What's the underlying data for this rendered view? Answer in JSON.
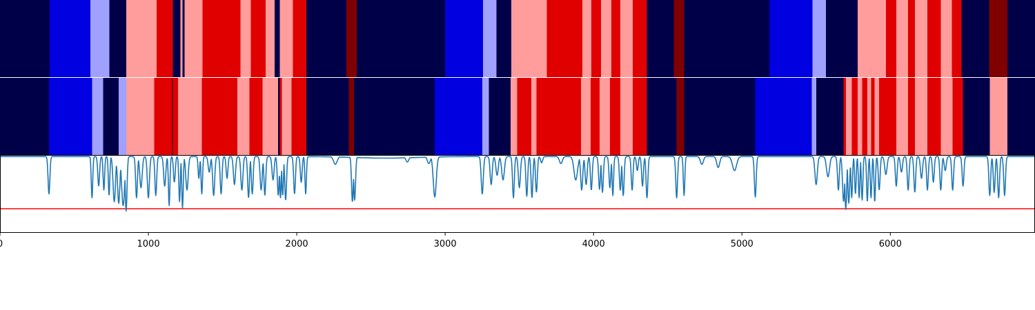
{
  "chart_data": {
    "type": "segmentation-strips-with-line",
    "xlim": [
      0,
      6975
    ],
    "x_ticks": [
      0,
      1000,
      2000,
      3000,
      4000,
      5000,
      6000
    ],
    "x_tick_labels": [
      "0",
      "1000",
      "2000",
      "3000",
      "4000",
      "5000",
      "6000"
    ],
    "colors": {
      "navy": "#000048",
      "blue": "#0000e0",
      "lightblue": "#a0a0ff",
      "pink": "#ff9c9c",
      "red": "#e00000",
      "darkred": "#800000",
      "line": "#1f77b4",
      "threshold": "#ff0000"
    },
    "strips": [
      {
        "name": "top",
        "segments": [
          [
            "navy",
            0,
            335
          ],
          [
            "blue",
            335,
            610
          ],
          [
            "lightblue",
            610,
            738
          ],
          [
            "navy",
            738,
            850
          ],
          [
            "pink",
            850,
            1055
          ],
          [
            "red",
            1055,
            1165
          ],
          [
            "navy",
            1165,
            1215
          ],
          [
            "pink",
            1215,
            1230
          ],
          [
            "navy",
            1230,
            1245
          ],
          [
            "pink",
            1245,
            1365
          ],
          [
            "red",
            1365,
            1620
          ],
          [
            "pink",
            1620,
            1690
          ],
          [
            "red",
            1690,
            1790
          ],
          [
            "pink",
            1790,
            1850
          ],
          [
            "navy",
            1850,
            1885
          ],
          [
            "pink",
            1885,
            1975
          ],
          [
            "red",
            1975,
            2065
          ],
          [
            "navy",
            2065,
            2335
          ],
          [
            "darkred",
            2335,
            2405
          ],
          [
            "navy",
            2405,
            3000
          ],
          [
            "blue",
            3000,
            3255
          ],
          [
            "lightblue",
            3255,
            3345
          ],
          [
            "navy",
            3345,
            3445
          ],
          [
            "pink",
            3445,
            3685
          ],
          [
            "red",
            3685,
            3925
          ],
          [
            "pink",
            3925,
            3985
          ],
          [
            "red",
            3985,
            4050
          ],
          [
            "pink",
            4050,
            4120
          ],
          [
            "red",
            4120,
            4180
          ],
          [
            "pink",
            4180,
            4265
          ],
          [
            "red",
            4265,
            4360
          ],
          [
            "navy",
            4360,
            4540
          ],
          [
            "darkred",
            4540,
            4610
          ],
          [
            "navy",
            4610,
            5185
          ],
          [
            "blue",
            5185,
            5475
          ],
          [
            "lightblue",
            5475,
            5565
          ],
          [
            "navy",
            5565,
            5780
          ],
          [
            "pink",
            5780,
            5970
          ],
          [
            "red",
            5970,
            6040
          ],
          [
            "pink",
            6040,
            6120
          ],
          [
            "red",
            6120,
            6165
          ],
          [
            "pink",
            6165,
            6250
          ],
          [
            "red",
            6250,
            6340
          ],
          [
            "pink",
            6340,
            6415
          ],
          [
            "red",
            6415,
            6480
          ],
          [
            "navy",
            6480,
            6665
          ],
          [
            "darkred",
            6665,
            6790
          ],
          [
            "navy",
            6790,
            6975
          ]
        ]
      },
      {
        "name": "middle",
        "segments": [
          [
            "navy",
            0,
            330
          ],
          [
            "blue",
            330,
            620
          ],
          [
            "lightblue",
            620,
            695
          ],
          [
            "navy",
            695,
            800
          ],
          [
            "lightblue",
            800,
            850
          ],
          [
            "pink",
            850,
            1040
          ],
          [
            "red",
            1040,
            1160
          ],
          [
            "navy",
            1160,
            1165
          ],
          [
            "red",
            1165,
            1200
          ],
          [
            "pink",
            1200,
            1360
          ],
          [
            "red",
            1360,
            1600
          ],
          [
            "pink",
            1600,
            1680
          ],
          [
            "red",
            1680,
            1770
          ],
          [
            "pink",
            1770,
            1875
          ],
          [
            "navy",
            1875,
            1885
          ],
          [
            "red",
            1885,
            1900
          ],
          [
            "pink",
            1900,
            1965
          ],
          [
            "red",
            1965,
            2065
          ],
          [
            "navy",
            2065,
            2350
          ],
          [
            "darkred",
            2350,
            2385
          ],
          [
            "navy",
            2385,
            2930
          ],
          [
            "blue",
            2930,
            3250
          ],
          [
            "lightblue",
            3250,
            3295
          ],
          [
            "navy",
            3295,
            3440
          ],
          [
            "pink",
            3440,
            3485
          ],
          [
            "red",
            3485,
            3580
          ],
          [
            "pink",
            3580,
            3615
          ],
          [
            "red",
            3615,
            3915
          ],
          [
            "pink",
            3915,
            3980
          ],
          [
            "red",
            3980,
            4040
          ],
          [
            "pink",
            4040,
            4110
          ],
          [
            "red",
            4110,
            4180
          ],
          [
            "pink",
            4180,
            4265
          ],
          [
            "red",
            4265,
            4360
          ],
          [
            "navy",
            4360,
            4560
          ],
          [
            "darkred",
            4560,
            4610
          ],
          [
            "navy",
            4610,
            5090
          ],
          [
            "blue",
            5090,
            5470
          ],
          [
            "lightblue",
            5470,
            5500
          ],
          [
            "navy",
            5500,
            5685
          ],
          [
            "red",
            5685,
            5700
          ],
          [
            "pink",
            5700,
            5740
          ],
          [
            "red",
            5740,
            5780
          ],
          [
            "pink",
            5780,
            5810
          ],
          [
            "red",
            5810,
            5845
          ],
          [
            "pink",
            5845,
            5870
          ],
          [
            "red",
            5870,
            5895
          ],
          [
            "pink",
            5895,
            5925
          ],
          [
            "red",
            5925,
            6040
          ],
          [
            "pink",
            6040,
            6120
          ],
          [
            "red",
            6120,
            6165
          ],
          [
            "pink",
            6165,
            6250
          ],
          [
            "red",
            6250,
            6340
          ],
          [
            "pink",
            6340,
            6420
          ],
          [
            "red",
            6420,
            6490
          ],
          [
            "navy",
            6490,
            6670
          ],
          [
            "pink",
            6670,
            6790
          ],
          [
            "navy",
            6790,
            6975
          ]
        ]
      }
    ],
    "line_series": {
      "name": "signal",
      "ylim": [
        0,
        1
      ],
      "baseline": 0.98,
      "threshold": 0.31,
      "dips": [
        [
          330,
          0.5,
          6
        ],
        [
          620,
          0.45,
          5
        ],
        [
          665,
          0.6,
          6
        ],
        [
          700,
          0.55,
          5
        ],
        [
          735,
          0.48,
          5
        ],
        [
          770,
          0.4,
          8
        ],
        [
          800,
          0.38,
          8
        ],
        [
          830,
          0.35,
          10
        ],
        [
          850,
          0.28,
          6
        ],
        [
          920,
          0.45,
          6
        ],
        [
          950,
          0.58,
          8
        ],
        [
          1000,
          0.45,
          7
        ],
        [
          1050,
          0.48,
          6
        ],
        [
          1110,
          0.6,
          7
        ],
        [
          1140,
          0.35,
          5
        ],
        [
          1175,
          0.65,
          6
        ],
        [
          1210,
          0.4,
          5
        ],
        [
          1230,
          0.32,
          5
        ],
        [
          1260,
          0.55,
          8
        ],
        [
          1340,
          0.7,
          5
        ],
        [
          1360,
          0.5,
          5
        ],
        [
          1410,
          0.78,
          7
        ],
        [
          1440,
          0.48,
          7
        ],
        [
          1490,
          0.5,
          6
        ],
        [
          1530,
          0.7,
          6
        ],
        [
          1580,
          0.62,
          7
        ],
        [
          1630,
          0.55,
          7
        ],
        [
          1675,
          0.45,
          6
        ],
        [
          1700,
          0.5,
          6
        ],
        [
          1760,
          0.55,
          7
        ],
        [
          1785,
          0.48,
          6
        ],
        [
          1840,
          0.68,
          7
        ],
        [
          1875,
          0.48,
          6
        ],
        [
          1890,
          0.45,
          5
        ],
        [
          1905,
          0.48,
          5
        ],
        [
          1925,
          0.42,
          6
        ],
        [
          1985,
          0.5,
          6
        ],
        [
          2030,
          0.65,
          6
        ],
        [
          2060,
          0.5,
          5
        ],
        [
          2260,
          0.88,
          12
        ],
        [
          2375,
          0.4,
          6
        ],
        [
          2390,
          0.42,
          6
        ],
        [
          2745,
          0.91,
          10
        ],
        [
          2890,
          0.89,
          10
        ],
        [
          2930,
          0.46,
          10
        ],
        [
          3250,
          0.5,
          7
        ],
        [
          3310,
          0.62,
          7
        ],
        [
          3350,
          0.74,
          8
        ],
        [
          3390,
          0.68,
          9
        ],
        [
          3460,
          0.45,
          6
        ],
        [
          3500,
          0.58,
          7
        ],
        [
          3550,
          0.47,
          6
        ],
        [
          3585,
          0.45,
          6
        ],
        [
          3615,
          0.52,
          6
        ],
        [
          3650,
          0.9,
          7
        ],
        [
          3780,
          0.89,
          10
        ],
        [
          3880,
          0.68,
          12
        ],
        [
          3920,
          0.55,
          7
        ],
        [
          3950,
          0.62,
          7
        ],
        [
          3985,
          0.55,
          6
        ],
        [
          4040,
          0.56,
          6
        ],
        [
          4060,
          0.52,
          6
        ],
        [
          4110,
          0.58,
          6
        ],
        [
          4130,
          0.48,
          5
        ],
        [
          4180,
          0.55,
          6
        ],
        [
          4200,
          0.48,
          6
        ],
        [
          4260,
          0.55,
          6
        ],
        [
          4295,
          0.8,
          6
        ],
        [
          4330,
          0.6,
          6
        ],
        [
          4360,
          0.45,
          6
        ],
        [
          4560,
          0.45,
          6
        ],
        [
          4610,
          0.48,
          5
        ],
        [
          4730,
          0.88,
          10
        ],
        [
          4840,
          0.84,
          10
        ],
        [
          4950,
          0.8,
          14
        ],
        [
          5090,
          0.46,
          6
        ],
        [
          5500,
          0.62,
          8
        ],
        [
          5580,
          0.72,
          10
        ],
        [
          5650,
          0.55,
          6
        ],
        [
          5685,
          0.4,
          7
        ],
        [
          5700,
          0.3,
          6
        ],
        [
          5720,
          0.38,
          6
        ],
        [
          5740,
          0.45,
          5
        ],
        [
          5765,
          0.5,
          5
        ],
        [
          5790,
          0.45,
          5
        ],
        [
          5810,
          0.42,
          5
        ],
        [
          5845,
          0.4,
          5
        ],
        [
          5870,
          0.45,
          5
        ],
        [
          5895,
          0.4,
          5
        ],
        [
          5925,
          0.55,
          6
        ],
        [
          5970,
          0.75,
          8
        ],
        [
          6040,
          0.6,
          6
        ],
        [
          6075,
          0.78,
          7
        ],
        [
          6120,
          0.55,
          6
        ],
        [
          6165,
          0.52,
          6
        ],
        [
          6210,
          0.7,
          7
        ],
        [
          6250,
          0.55,
          6
        ],
        [
          6290,
          0.65,
          6
        ],
        [
          6340,
          0.55,
          6
        ],
        [
          6370,
          0.8,
          7
        ],
        [
          6420,
          0.55,
          6
        ],
        [
          6490,
          0.6,
          6
        ],
        [
          6670,
          0.48,
          6
        ],
        [
          6700,
          0.52,
          6
        ],
        [
          6730,
          0.45,
          6
        ],
        [
          6770,
          0.48,
          6
        ]
      ]
    }
  }
}
